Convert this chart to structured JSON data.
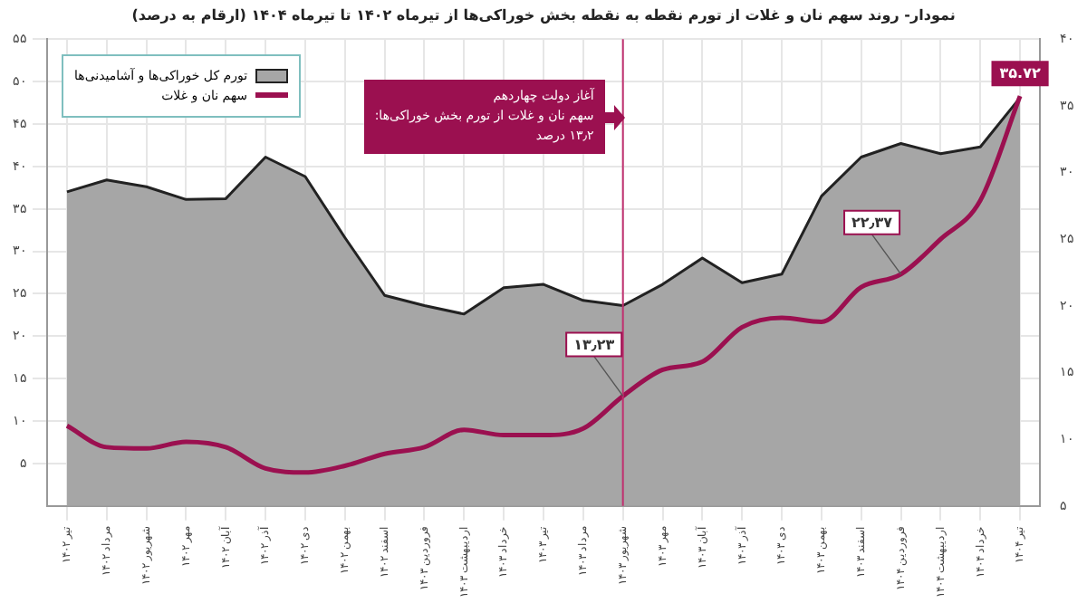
{
  "chart_data": {
    "type": "area",
    "title": "نمودار- روند سهم نان و غلات از تورم نقطه به نقطه بخش خوراکی‌ها از تیرماه ۱۴۰۲ تا تیرماه ۱۴۰۴ (ارقام به درصد)",
    "categories": [
      "تیر ۱۴۰۲",
      "مرداد ۱۴۰۲",
      "شهریور ۱۴۰۲",
      "مهر ۱۴۰۲",
      "آبان ۱۴۰۲",
      "آذر ۱۴۰۲",
      "دی ۱۴۰۲",
      "بهمن ۱۴۰۲",
      "اسفند ۱۴۰۲",
      "فروردین ۱۴۰۳",
      "اردیبهشت ۱۴۰۳",
      "خرداد ۱۴۰۳",
      "تیر ۱۴۰۳",
      "مرداد ۱۴۰۳",
      "شهریور ۱۴۰۳",
      "مهر ۱۴۰۳",
      "آبان ۱۴۰۳",
      "آذر ۱۴۰۳",
      "دی ۱۴۰۳",
      "بهمن ۱۴۰۳",
      "اسفند ۱۴۰۳",
      "فروردین ۱۴۰۴",
      "اردیبهشت ۱۴۰۴",
      "خرداد ۱۴۰۴",
      "تیر ۱۴۰۴"
    ],
    "series": [
      {
        "name": "تورم کل خوراکی‌ها و آشامیدنی‌ها",
        "color": "#a6a6a6",
        "values": [
          37.0,
          38.4,
          37.6,
          36.1,
          36.2,
          41.1,
          38.8,
          31.6,
          24.8,
          23.6,
          22.6,
          25.7,
          26.1,
          24.2,
          23.6,
          26.1,
          29.2,
          26.3,
          27.3,
          36.5,
          41.1,
          42.7,
          41.5,
          42.3,
          48.1
        ]
      },
      {
        "name": "سهم نان و غلات",
        "type": "line",
        "color": "#9b1050",
        "axis": "y2",
        "values": [
          11.0,
          9.4,
          9.3,
          9.8,
          9.4,
          7.8,
          7.5,
          8.0,
          8.9,
          9.4,
          10.7,
          10.3,
          10.3,
          10.8,
          13.23,
          15.2,
          15.8,
          18.4,
          19.1,
          18.8,
          21.4,
          22.37,
          25.0,
          27.9,
          35.72
        ],
        "value_labels": [
          null,
          null,
          null,
          null,
          null,
          null,
          null,
          null,
          null,
          null,
          null,
          null,
          null,
          null,
          "۱۳٫۲۳",
          null,
          null,
          null,
          null,
          null,
          null,
          "۲۲٫۳۷",
          null,
          null,
          "۳۵.۷۲"
        ]
      }
    ],
    "ylim": [
      0,
      55
    ],
    "yticks": [
      {
        "value": 5,
        "label": "۵"
      },
      {
        "value": 10,
        "label": "۱۰"
      },
      {
        "value": 15,
        "label": "۱۵"
      },
      {
        "value": 20,
        "label": "۲۰"
      },
      {
        "value": 25,
        "label": "۲۵"
      },
      {
        "value": 30,
        "label": "۳۰"
      },
      {
        "value": 35,
        "label": "۳۵"
      },
      {
        "value": 40,
        "label": "۴۰"
      },
      {
        "value": 45,
        "label": "۴۵"
      },
      {
        "value": 50,
        "label": "۵۰"
      },
      {
        "value": 55,
        "label": "۵۵"
      }
    ],
    "y2lim": [
      5,
      40
    ],
    "y2ticks": [
      {
        "value": 5,
        "label": "۵"
      },
      {
        "value": 10,
        "label": "۱۰"
      },
      {
        "value": 15,
        "label": "۱۵"
      },
      {
        "value": 20,
        "label": "۲۰"
      },
      {
        "value": 25,
        "label": "۲۵"
      },
      {
        "value": 30,
        "label": "۳۰"
      },
      {
        "value": 35,
        "label": "۳۵"
      },
      {
        "value": 40,
        "label": "۴۰"
      }
    ],
    "grid": true,
    "legend": "top left",
    "ref_lines": [
      {
        "axis": "x",
        "value": "شهریور ۱۴۰۳",
        "label": "آغاز دولت چهاردهم\nسهم نان و غلات از تورم بخش خوراکی‌ها:\n۱۳٫۲ درصد",
        "color": "#c0306f"
      }
    ]
  }
}
